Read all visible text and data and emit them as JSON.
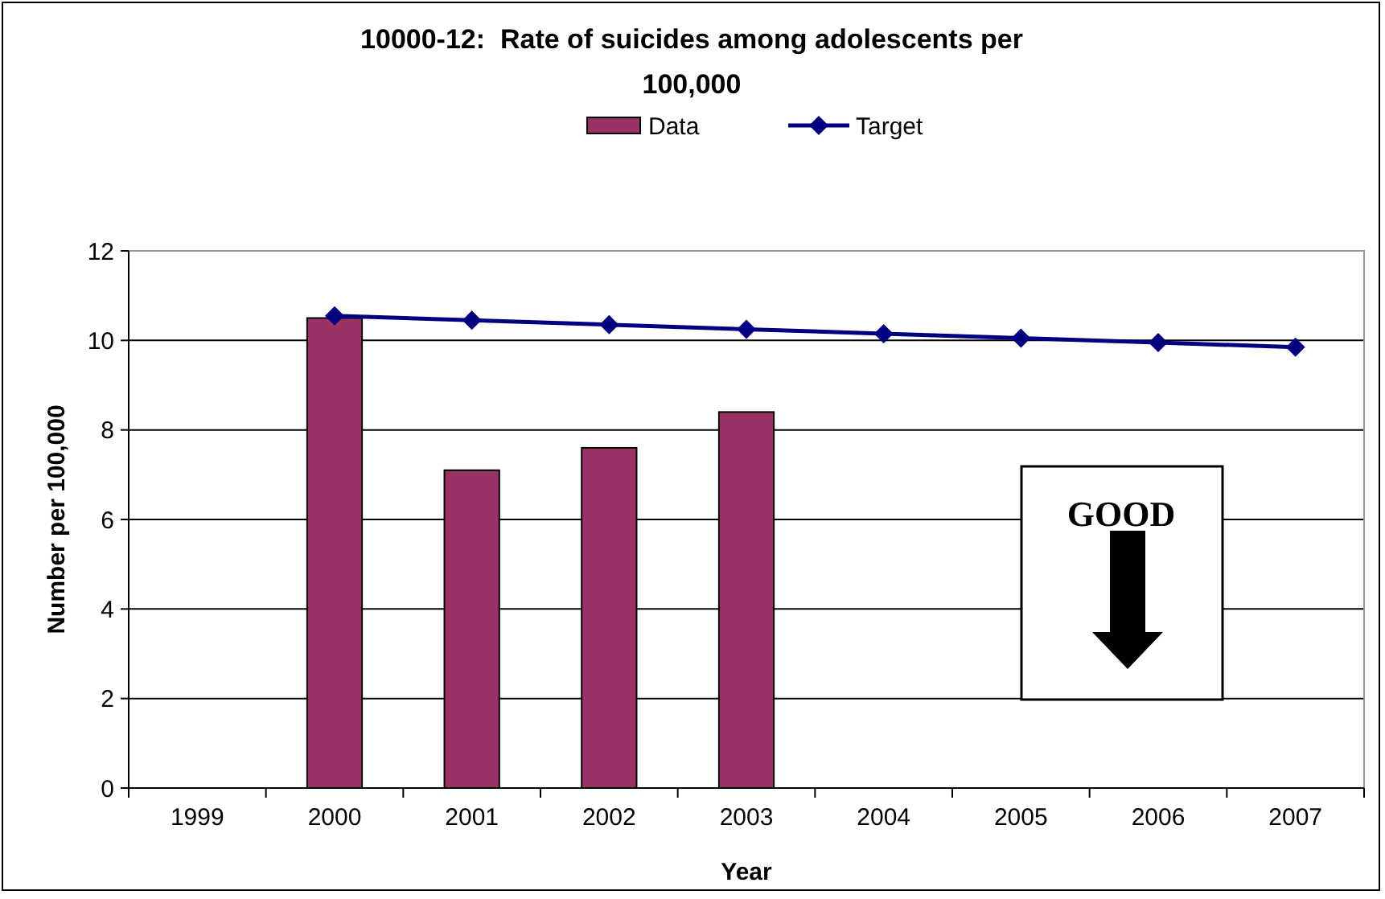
{
  "chart_data": {
    "type": "bar",
    "title": "10000-12:  Rate of suicides among adolescents per 100,000",
    "xlabel": "Year",
    "ylabel": "Number per 100,000",
    "categories": [
      "1999",
      "2000",
      "2001",
      "2002",
      "2003",
      "2004",
      "2005",
      "2006",
      "2007"
    ],
    "series": [
      {
        "name": "Data",
        "color": "#993366",
        "values": [
          null,
          10.5,
          7.1,
          7.6,
          8.4,
          null,
          null,
          null,
          null
        ]
      },
      {
        "name": "Target",
        "type": "line",
        "color": "#000080",
        "values": [
          null,
          10.55,
          10.45,
          10.35,
          10.25,
          10.15,
          10.05,
          9.95,
          9.85
        ]
      }
    ],
    "ylim": [
      0,
      12
    ],
    "yticks": [
      0,
      2,
      4,
      6,
      8,
      10,
      12
    ],
    "grid": "y",
    "legend": "top",
    "marker": "diamond",
    "annotations": [
      "GOOD"
    ]
  }
}
